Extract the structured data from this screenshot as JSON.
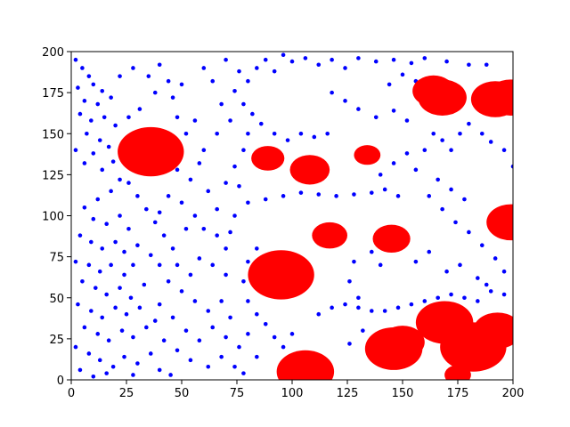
{
  "chart_data": {
    "type": "scatter",
    "xlim": [
      0,
      200
    ],
    "ylim": [
      0,
      200
    ],
    "xticks": [
      0,
      25,
      50,
      75,
      100,
      125,
      150,
      175,
      200
    ],
    "yticks": [
      0,
      25,
      50,
      75,
      100,
      125,
      150,
      175,
      200
    ],
    "series": [
      {
        "color": "#0000ff",
        "x": [
          2,
          5,
          8,
          3,
          10,
          14,
          6,
          12,
          18,
          4,
          9,
          15,
          20,
          7,
          13,
          2,
          10,
          17,
          6,
          14,
          19,
          22,
          18,
          12,
          6,
          10,
          16,
          22,
          26,
          4,
          9,
          14,
          20,
          24,
          30,
          2,
          8,
          13,
          18,
          24,
          28,
          5,
          11,
          16,
          22,
          27,
          33,
          3,
          9,
          14,
          20,
          25,
          31,
          6,
          12,
          17,
          23,
          28,
          34,
          2,
          8,
          13,
          19,
          24,
          30,
          36,
          4,
          10,
          16,
          28,
          40,
          45,
          26,
          30,
          34,
          38,
          42,
          46,
          26,
          31,
          22,
          28,
          35,
          40,
          44,
          38,
          46,
          50,
          48,
          56,
          52,
          48,
          54,
          58,
          60,
          62,
          50,
          44,
          40,
          56,
          60,
          66,
          52,
          48,
          54,
          58,
          64,
          70,
          40,
          36,
          44,
          50,
          56,
          62,
          68,
          40,
          46,
          52,
          58,
          64,
          70,
          42,
          38,
          48,
          54,
          62,
          68,
          74,
          72,
          76,
          78,
          70,
          72,
          74,
          66,
          70,
          74,
          66,
          72,
          68,
          74,
          64,
          60,
          70,
          76,
          80,
          84,
          88,
          92,
          96,
          100,
          106,
          112,
          118,
          124,
          130,
          138,
          146,
          154,
          160,
          170,
          180,
          188,
          78,
          82,
          80,
          86,
          92,
          98,
          104,
          110,
          116,
          78,
          76,
          80,
          88,
          96,
          104,
          112,
          120,
          128,
          136,
          142,
          148,
          140,
          146,
          152,
          156,
          160,
          164,
          168,
          172,
          176,
          180,
          186,
          190,
          196,
          200,
          152,
          146,
          138,
          130,
          124,
          118,
          144,
          150,
          156,
          162,
          168,
          174,
          180,
          186,
          192,
          196,
          166,
          172,
          178,
          80,
          84,
          78,
          80,
          84,
          88,
          92,
          96,
          100,
          84,
          80,
          112,
          118,
          124,
          130,
          136,
          142,
          148,
          154,
          160,
          166,
          172,
          178,
          184,
          190,
          196,
          126,
          128,
          130,
          132,
          126,
          136,
          140,
          156,
          162,
          170,
          176,
          184,
          188
        ],
        "y": [
          195,
          190,
          185,
          178,
          180,
          176,
          170,
          168,
          172,
          162,
          158,
          160,
          155,
          150,
          146,
          140,
          138,
          142,
          132,
          128,
          133,
          122,
          115,
          110,
          105,
          98,
          95,
          100,
          92,
          88,
          84,
          80,
          84,
          78,
          82,
          72,
          70,
          66,
          70,
          64,
          70,
          60,
          56,
          52,
          56,
          50,
          58,
          46,
          42,
          38,
          44,
          40,
          44,
          32,
          28,
          24,
          30,
          26,
          32,
          20,
          16,
          12,
          8,
          14,
          10,
          16,
          6,
          2,
          4,
          3,
          6,
          3,
          120,
          112,
          104,
          96,
          88,
          80,
          160,
          165,
          185,
          190,
          185,
          192,
          182,
          175,
          172,
          180,
          160,
          158,
          150,
          128,
          122,
          132,
          140,
          115,
          108,
          112,
          102,
          100,
          92,
          88,
          92,
          70,
          64,
          74,
          70,
          64,
          70,
          76,
          60,
          54,
          48,
          42,
          48,
          46,
          38,
          30,
          24,
          32,
          26,
          24,
          36,
          18,
          12,
          8,
          14,
          8,
          38,
          20,
          4,
          80,
          90,
          100,
          104,
          120,
          130,
          150,
          158,
          168,
          176,
          182,
          190,
          195,
          188,
          182,
          190,
          195,
          188,
          198,
          194,
          196,
          192,
          195,
          190,
          196,
          194,
          195,
          193,
          196,
          194,
          192,
          192,
          168,
          162,
          150,
          156,
          150,
          146,
          150,
          148,
          150,
          140,
          118,
          108,
          110,
          112,
          114,
          113,
          112,
          113,
          114,
          116,
          112,
          125,
          132,
          138,
          128,
          140,
          150,
          146,
          140,
          150,
          156,
          150,
          145,
          140,
          130,
          158,
          164,
          160,
          165,
          170,
          175,
          180,
          186,
          182,
          112,
          104,
          96,
          90,
          82,
          74,
          66,
          122,
          116,
          110,
          72,
          80,
          60,
          48,
          40,
          34,
          26,
          20,
          28,
          14,
          28,
          40,
          44,
          46,
          44,
          42,
          42,
          44,
          46,
          48,
          50,
          52,
          50,
          48,
          54,
          52,
          60,
          72,
          50,
          30,
          22,
          78,
          70,
          72,
          78,
          66,
          70,
          62,
          58
        ]
      },
      {
        "color": "#ff0000",
        "x": [
          36,
          89,
          108,
          134,
          117,
          145,
          95,
          164,
          168,
          192,
          199,
          199,
          169,
          146,
          150,
          182,
          193,
          106,
          175
        ],
        "y": [
          139,
          135,
          128,
          137,
          88,
          86,
          64,
          176,
          172,
          171,
          172,
          96,
          35,
          19,
          23,
          20,
          30,
          5,
          3
        ],
        "r": [
          15,
          7.5,
          9,
          6,
          8,
          8.5,
          15,
          9.5,
          11,
          11,
          11,
          11,
          13,
          13,
          10,
          15,
          11,
          13,
          6
        ]
      }
    ]
  }
}
